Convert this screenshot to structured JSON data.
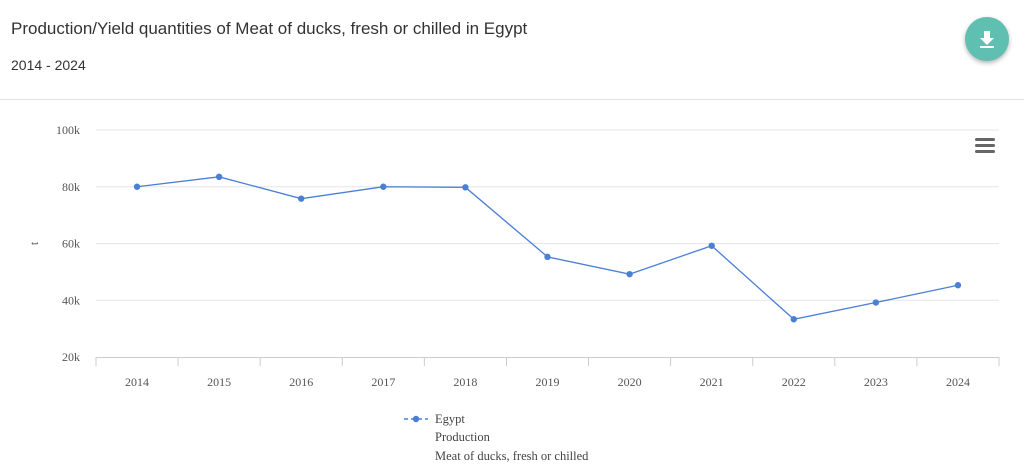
{
  "header": {
    "title": "Production/Yield quantities of Meat of ducks, fresh or chilled in Egypt",
    "subtitle": "2014 - 2024"
  },
  "icons": {
    "download": "download-icon",
    "menu": "hamburger-menu-icon"
  },
  "colors": {
    "series": "#4a7fd6",
    "accent": "#5fbfb1",
    "grid": "#e6e6e6"
  },
  "chart_data": {
    "type": "line",
    "title": "Production/Yield quantities of Meat of ducks, fresh or chilled in Egypt",
    "subtitle": "2014 - 2024",
    "xlabel": "",
    "ylabel": "t",
    "x": [
      "2014",
      "2015",
      "2016",
      "2017",
      "2018",
      "2019",
      "2020",
      "2021",
      "2022",
      "2023",
      "2024"
    ],
    "ylim": [
      20000,
      100000
    ],
    "yticks": [
      20000,
      40000,
      60000,
      80000,
      100000
    ],
    "ytick_labels": [
      "20k",
      "40k",
      "60k",
      "80k",
      "100k"
    ],
    "grid": true,
    "legend_position": "bottom",
    "series": [
      {
        "name": "Egypt",
        "legend_lines": [
          "Egypt",
          "Production",
          "Meat of ducks, fresh or chilled"
        ],
        "values": [
          80000,
          83500,
          75800,
          80000,
          79800,
          55300,
          49200,
          59200,
          33300,
          39200,
          45300
        ]
      }
    ]
  }
}
